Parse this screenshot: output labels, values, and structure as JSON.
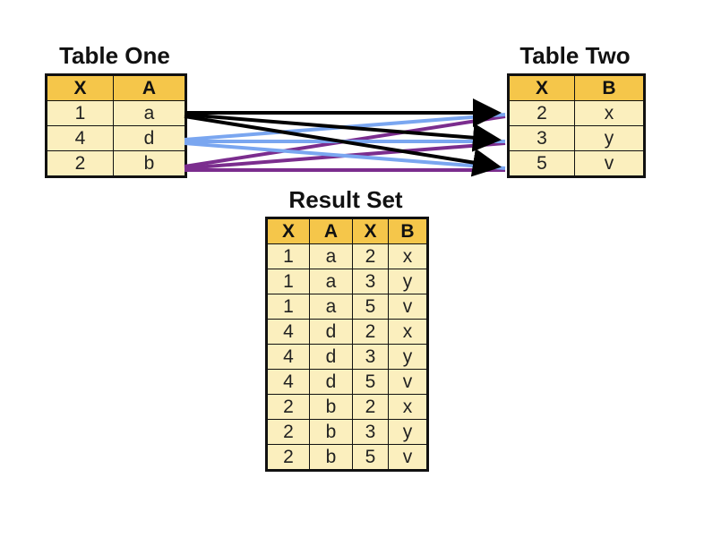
{
  "table_one": {
    "title": "Table One",
    "headers": [
      "X",
      "A"
    ],
    "rows": [
      [
        "1",
        "a"
      ],
      [
        "4",
        "d"
      ],
      [
        "2",
        "b"
      ]
    ]
  },
  "table_two": {
    "title": "Table Two",
    "headers": [
      "X",
      "B"
    ],
    "rows": [
      [
        "2",
        "x"
      ],
      [
        "3",
        "y"
      ],
      [
        "5",
        "v"
      ]
    ]
  },
  "result_set": {
    "title": "Result Set",
    "headers": [
      "X",
      "A",
      "X",
      "B"
    ],
    "rows": [
      [
        "1",
        "a",
        "2",
        "x"
      ],
      [
        "1",
        "a",
        "3",
        "y"
      ],
      [
        "1",
        "a",
        "5",
        "v"
      ],
      [
        "4",
        "d",
        "2",
        "x"
      ],
      [
        "4",
        "d",
        "3",
        "y"
      ],
      [
        "4",
        "d",
        "5",
        "v"
      ],
      [
        "2",
        "b",
        "2",
        "x"
      ],
      [
        "2",
        "b",
        "3",
        "y"
      ],
      [
        "2",
        "b",
        "5",
        "v"
      ]
    ]
  },
  "connections": {
    "colors": [
      "#000000",
      "#7aa6f0",
      "#7b2d8e"
    ],
    "pairs": [
      [
        "1",
        "2"
      ],
      [
        "1",
        "3"
      ],
      [
        "1",
        "5"
      ],
      [
        "4",
        "2"
      ],
      [
        "4",
        "3"
      ],
      [
        "4",
        "5"
      ],
      [
        "2",
        "2"
      ],
      [
        "2",
        "3"
      ],
      [
        "2",
        "5"
      ]
    ]
  }
}
